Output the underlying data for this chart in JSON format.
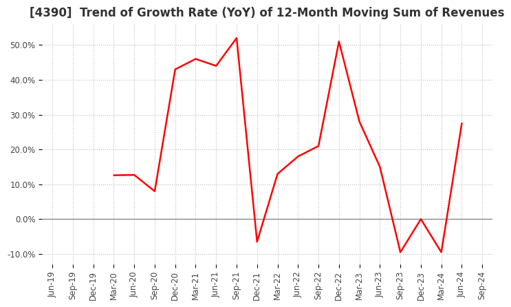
{
  "title": "[4390]  Trend of Growth Rate (YoY) of 12-Month Moving Sum of Revenues",
  "line_color": "#ff0000",
  "background_color": "#ffffff",
  "grid_color": "#bbbbbb",
  "zero_line_color": "#888888",
  "ylim": [
    -0.13,
    0.56
  ],
  "yticks": [
    -0.1,
    0.0,
    0.1,
    0.2,
    0.3,
    0.4,
    0.5
  ],
  "ytick_labels": [
    "-10.0%",
    "0.0%",
    "10.0%",
    "20.0%",
    "30.0%",
    "40.0%",
    "50.0%"
  ],
  "dates": [
    "Jun-19",
    "Sep-19",
    "Dec-19",
    "Mar-20",
    "Jun-20",
    "Sep-20",
    "Dec-20",
    "Mar-21",
    "Jun-21",
    "Sep-21",
    "Dec-21",
    "Mar-22",
    "Jun-22",
    "Sep-22",
    "Dec-22",
    "Mar-23",
    "Jun-23",
    "Sep-23",
    "Dec-23",
    "Mar-24",
    "Jun-24",
    "Sep-24"
  ],
  "values": [
    null,
    null,
    null,
    0.126,
    0.127,
    0.08,
    0.43,
    0.46,
    0.44,
    0.52,
    -0.065,
    0.13,
    0.18,
    0.21,
    0.51,
    0.28,
    0.15,
    -0.095,
    0.0,
    -0.095,
    0.275,
    null
  ],
  "title_fontsize": 12,
  "tick_fontsize": 8.5,
  "tick_color": "#444444",
  "title_color": "#333333",
  "line_width": 1.8
}
